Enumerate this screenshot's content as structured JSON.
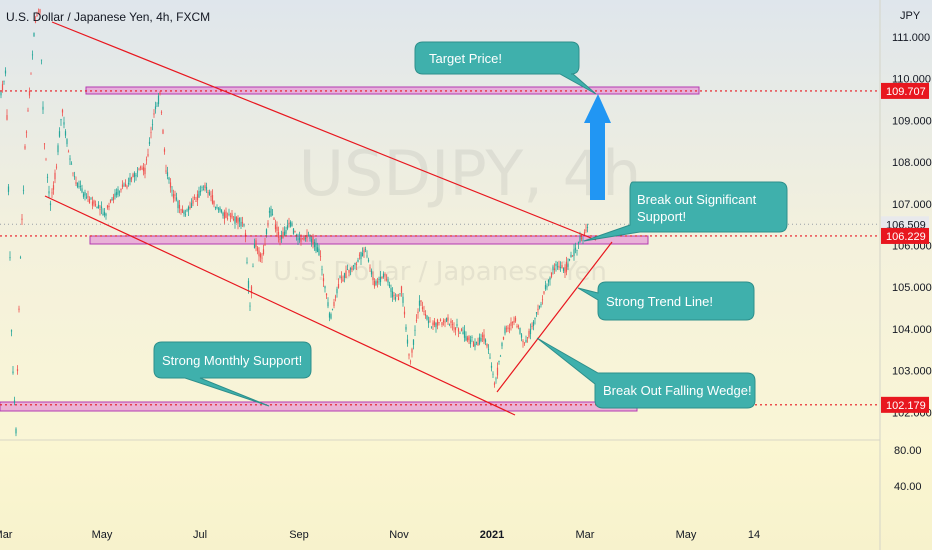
{
  "chart_data": {
    "type": "candlestick",
    "symbol_title": "U.S. Dollar / Japanese Yen, 4h, FXCM",
    "currency_label": "JPY",
    "watermark": {
      "ticker": "USDJPY, 4h",
      "name": "U.S. Dollar / Japanese Yen"
    },
    "y_range": [
      101.8,
      111.6
    ],
    "y_ticks": [
      "111.000",
      "110.000",
      "109.000",
      "108.000",
      "107.000",
      "106.000",
      "105.000",
      "104.000",
      "103.000",
      "102.000"
    ],
    "volume_ticks": [
      "80.00",
      "40.00"
    ],
    "x_ticks": [
      "Mar",
      "May",
      "Jul",
      "Sep",
      "Nov",
      "2021",
      "Mar",
      "May",
      "14"
    ],
    "price_badges": [
      {
        "label": "109.707",
        "value": 109.707,
        "color": "#e8171f"
      },
      {
        "label": "106.509",
        "value": 106.509,
        "color": "#d1d4dc"
      },
      {
        "label": "106.229",
        "value": 106.229,
        "color": "#e8171f"
      },
      {
        "label": "102.179",
        "value": 102.179,
        "color": "#e8171f"
      }
    ],
    "horizontal_levels": [
      109.707,
      106.229,
      102.179
    ],
    "callouts": [
      {
        "text": [
          "Target Price!"
        ]
      },
      {
        "text": [
          "Break out Significant",
          "Support!"
        ]
      },
      {
        "text": [
          "Strong Trend Line!"
        ]
      },
      {
        "text": [
          "Strong Monthly Support!"
        ]
      },
      {
        "text": [
          "Break Out Falling Wedge!"
        ]
      }
    ],
    "colors": {
      "up": "#26a69a",
      "down": "#ef5350",
      "level": "#e8171f",
      "callout": "#3fb0ac",
      "arrow": "#2196f3",
      "zone_fill": "#e59bd5",
      "zone_border": "#b33bb1"
    }
  }
}
